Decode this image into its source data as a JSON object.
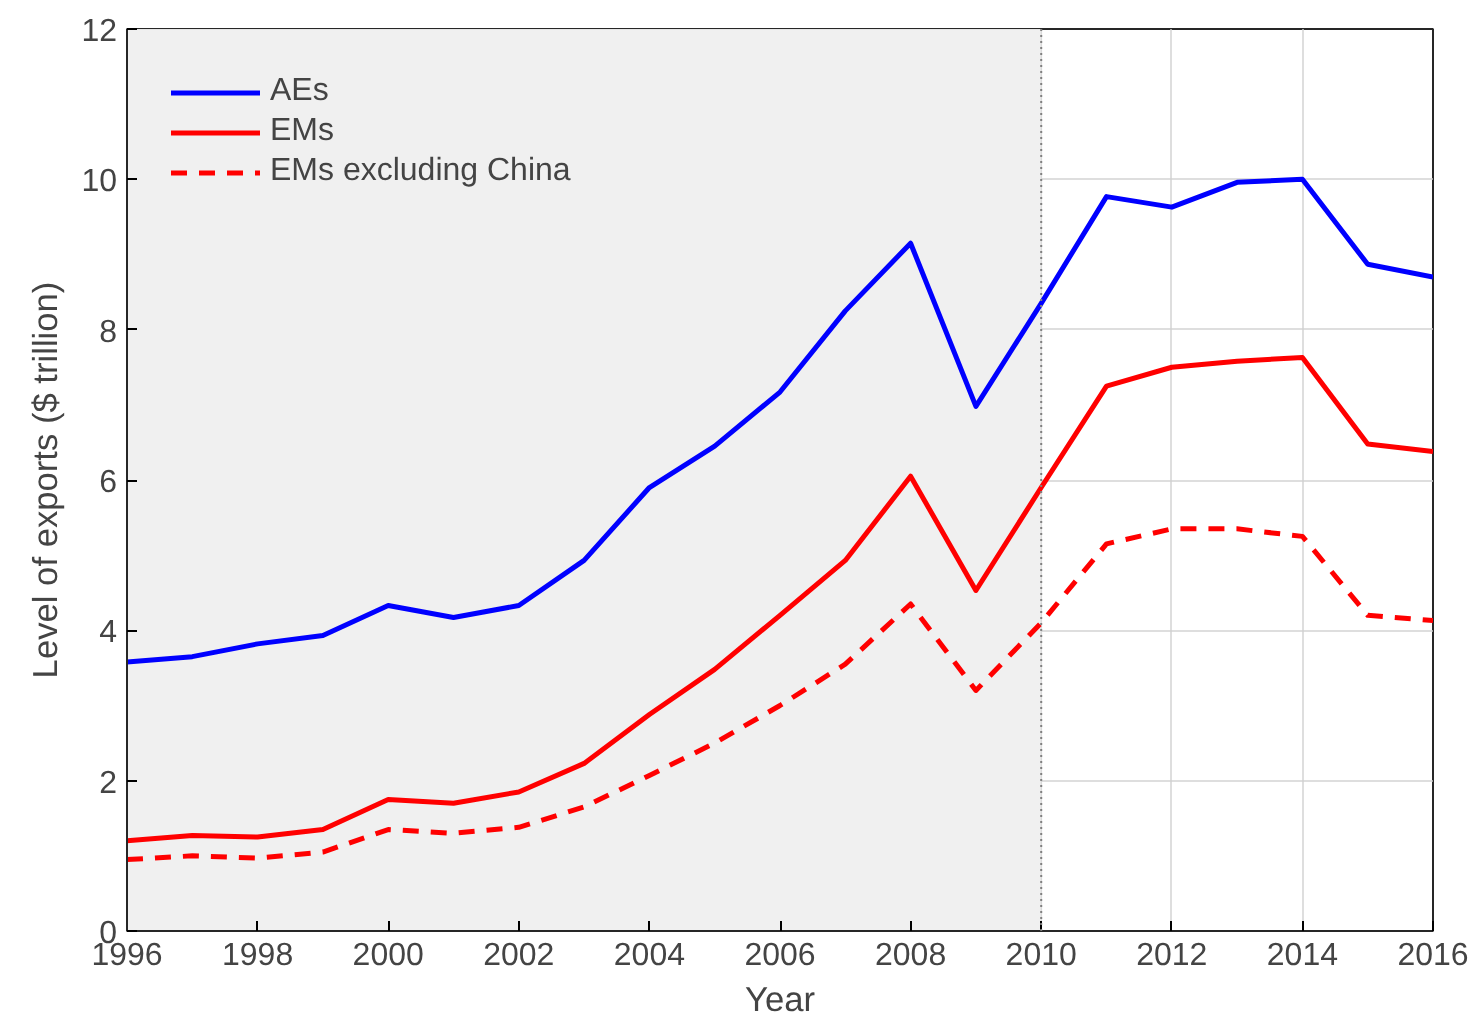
{
  "chart_data": {
    "type": "line",
    "xlabel": "Year",
    "ylabel": "Level of exports ($ trillion)",
    "x": [
      1996,
      1997,
      1998,
      1999,
      2000,
      2001,
      2002,
      2003,
      2004,
      2005,
      2006,
      2007,
      2008,
      2009,
      2010,
      2011,
      2012,
      2013,
      2014,
      2015,
      2016
    ],
    "series": [
      {
        "name": "AEs",
        "color": "#0000ff",
        "line_style": "solid",
        "values": [
          3.58,
          3.65,
          3.82,
          3.93,
          4.33,
          4.17,
          4.33,
          4.93,
          5.9,
          6.45,
          7.17,
          8.25,
          9.15,
          6.98,
          8.35,
          9.77,
          9.63,
          9.96,
          10.0,
          8.87,
          8.7
        ]
      },
      {
        "name": "EMs",
        "color": "#ff0000",
        "line_style": "solid",
        "values": [
          1.2,
          1.27,
          1.25,
          1.35,
          1.75,
          1.7,
          1.85,
          2.23,
          2.88,
          3.48,
          4.2,
          4.93,
          6.05,
          4.53,
          5.9,
          7.25,
          7.5,
          7.58,
          7.63,
          6.48,
          6.38
        ]
      },
      {
        "name": "EMs excluding China",
        "color": "#ff0000",
        "line_style": "dashed",
        "values": [
          0.95,
          1.0,
          0.97,
          1.05,
          1.35,
          1.3,
          1.38,
          1.65,
          2.07,
          2.5,
          3.0,
          3.55,
          4.35,
          3.2,
          4.1,
          5.15,
          5.35,
          5.35,
          5.25,
          4.2,
          4.13
        ]
      }
    ],
    "xlim": [
      1996,
      2016
    ],
    "xticks": [
      1996,
      1998,
      2000,
      2002,
      2004,
      2006,
      2008,
      2010,
      2012,
      2014,
      2016
    ],
    "ylim": [
      0,
      12
    ],
    "yticks": [
      0,
      2,
      4,
      6,
      8,
      10,
      12
    ],
    "bands": [
      {
        "axis": "x",
        "from": 1996,
        "to": 2010,
        "color": "#f0f0f0"
      }
    ],
    "ref_lines": [
      {
        "axis": "x",
        "value": 2010,
        "color": "#808080",
        "line_style": "dotted"
      }
    ],
    "grid": true,
    "legend": "top left",
    "marker": "none"
  }
}
